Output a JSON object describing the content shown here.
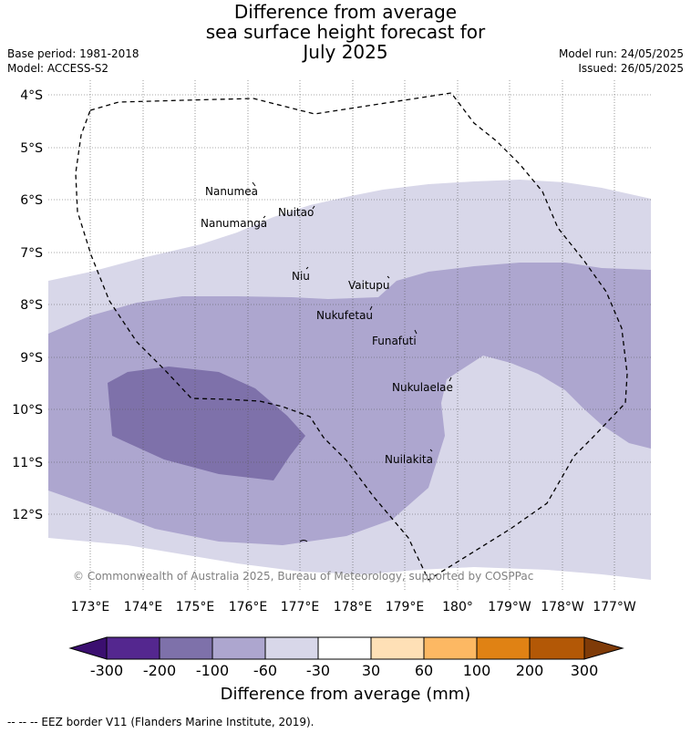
{
  "title": {
    "line1": "Difference from average",
    "line2": "sea surface height forecast for",
    "line3": "July 2025"
  },
  "meta": {
    "base_period": "Base period: 1981-2018",
    "model": "Model: ACCESS-S2",
    "model_run": "Model run: 24/05/2025",
    "issued": "Issued: 26/05/2025"
  },
  "map": {
    "lat_labels": [
      "4°S",
      "5°S",
      "6°S",
      "7°S",
      "8°S",
      "9°S",
      "10°S",
      "11°S",
      "12°S"
    ],
    "lon_labels": [
      "173°E",
      "174°E",
      "175°E",
      "176°E",
      "177°E",
      "178°E",
      "179°E",
      "180°",
      "179°W",
      "178°W",
      "177°W"
    ],
    "places": [
      "Nanumea",
      "Nuitao",
      "Nanumanga",
      "Niu",
      "Vaitupu",
      "Nukufetau",
      "Funafuti",
      "Nukulaelae",
      "Nuilakita"
    ],
    "copyright": "© Commonwealth of Australia 2025, Bureau of Meteorology, supported by COSPPac"
  },
  "colorbar": {
    "ticks": [
      "-300",
      "-200",
      "-100",
      "-60",
      "-30",
      "30",
      "60",
      "100",
      "200",
      "300"
    ],
    "colors": [
      "#3b0f70",
      "#54278f",
      "#7e71aa",
      "#ada6cf",
      "#d8d7e9",
      "#ffffff",
      "#fee0b6",
      "#fdb863",
      "#e08214",
      "#b35806",
      "#7f3b08"
    ],
    "title": "Difference from average (mm)"
  },
  "footer": "--  --  -- EEZ border V11 (Flanders Marine Institute, 2019)."
}
